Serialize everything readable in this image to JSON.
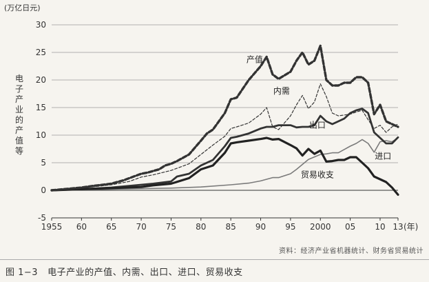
{
  "chart_data": {
    "type": "line",
    "unit_label": "(万亿日元)",
    "ylabel": "电子产业的产值等",
    "xlabel": "(年)",
    "ylim": [
      -5,
      30
    ],
    "xlim": [
      1955,
      2013
    ],
    "yticks": [
      -5,
      0,
      5,
      10,
      15,
      20,
      25,
      30
    ],
    "xticks": [
      {
        "value": 1955,
        "label": "1955"
      },
      {
        "value": 1960,
        "label": "60"
      },
      {
        "value": 1965,
        "label": "65"
      },
      {
        "value": 1970,
        "label": "70"
      },
      {
        "value": 1975,
        "label": "75"
      },
      {
        "value": 1980,
        "label": "80"
      },
      {
        "value": 1985,
        "label": "85"
      },
      {
        "value": 1990,
        "label": "90"
      },
      {
        "value": 1995,
        "label": "95"
      },
      {
        "value": 2000,
        "label": "2000"
      },
      {
        "value": 2005,
        "label": "05"
      },
      {
        "value": 2010,
        "label": "10"
      },
      {
        "value": 2013,
        "label": "13"
      }
    ],
    "grid": true,
    "series": [
      {
        "name": "产值",
        "style": "thick-dashed",
        "color": "#333333",
        "x": [
          1955,
          1957,
          1960,
          1962,
          1965,
          1967,
          1970,
          1971,
          1973,
          1974,
          1975,
          1976,
          1978,
          1980,
          1981,
          1982,
          1984,
          1985,
          1986,
          1988,
          1990,
          1991,
          1992,
          1993,
          1995,
          1996,
          1997,
          1998,
          1999,
          2000,
          2001,
          2002,
          2003,
          2004,
          2005,
          2006,
          2007,
          2008,
          2009,
          2010,
          2011,
          2012,
          2013
        ],
        "y": [
          0,
          0.2,
          0.5,
          0.8,
          1.2,
          1.8,
          3,
          3.2,
          3.8,
          4.5,
          4.8,
          5.3,
          6.5,
          9,
          10.3,
          11,
          14,
          16.5,
          16.8,
          20,
          22.5,
          24.2,
          21,
          20.2,
          21.5,
          23.5,
          25,
          22.8,
          23.5,
          26.2,
          20,
          19,
          19,
          19.5,
          19.5,
          20.5,
          20.5,
          19.5,
          13.8,
          15.5,
          12.5,
          12,
          11.5
        ]
      },
      {
        "name": "内需",
        "style": "thin-dashed",
        "color": "#333333",
        "x": [
          1955,
          1960,
          1965,
          1968,
          1970,
          1972,
          1975,
          1978,
          1980,
          1982,
          1984,
          1985,
          1986,
          1988,
          1990,
          1991,
          1992,
          1993,
          1995,
          1996,
          1997,
          1998,
          1999,
          2000,
          2001,
          2002,
          2003,
          2005,
          2006,
          2007,
          2008,
          2009,
          2010,
          2011,
          2012,
          2013
        ],
        "y": [
          0,
          0.4,
          1,
          1.6,
          2.4,
          2.8,
          3.6,
          4.8,
          6.5,
          8.2,
          9.8,
          11.2,
          11.5,
          12.2,
          13.8,
          15,
          11.5,
          11,
          13.5,
          15.5,
          17.2,
          14.8,
          16,
          19.3,
          17,
          14,
          13.5,
          13.8,
          14.2,
          14.5,
          12.8,
          11.2,
          11.8,
          10.5,
          11.5,
          12
        ]
      },
      {
        "name": "出口",
        "style": "thick-solid",
        "color": "#333333",
        "x": [
          1955,
          1960,
          1965,
          1970,
          1972,
          1975,
          1976,
          1978,
          1980,
          1982,
          1984,
          1985,
          1986,
          1987,
          1988,
          1990,
          1991,
          1992,
          1993,
          1995,
          1996,
          1997,
          1998,
          1999,
          2000,
          2001,
          2002,
          2003,
          2004,
          2005,
          2006,
          2007,
          2008,
          2009,
          2010,
          2011,
          2012,
          2013
        ],
        "y": [
          0,
          0.2,
          0.5,
          1,
          1.2,
          1.6,
          2.5,
          3,
          4.5,
          5.5,
          8,
          9.5,
          9.7,
          10,
          10.3,
          11.2,
          11.5,
          11.5,
          11.8,
          11.8,
          11.4,
          11.5,
          11.5,
          11.8,
          13.5,
          12.5,
          12,
          12.5,
          13,
          14,
          14.5,
          14.8,
          14,
          10.5,
          9.5,
          8.5,
          8.5,
          9.6
        ]
      },
      {
        "name": "进口",
        "style": "thin-solid",
        "color": "#7a7a7a",
        "x": [
          1955,
          1960,
          1965,
          1970,
          1975,
          1980,
          1985,
          1988,
          1990,
          1992,
          1993,
          1995,
          1996,
          1998,
          2000,
          2001,
          2002,
          2003,
          2004,
          2005,
          2006,
          2007,
          2008,
          2009,
          2010,
          2011,
          2012,
          2013
        ],
        "y": [
          0,
          0.1,
          0.2,
          0.3,
          0.4,
          0.6,
          1,
          1.3,
          1.7,
          2.3,
          2.3,
          3,
          3.8,
          5.6,
          6.5,
          6.6,
          6.8,
          6.8,
          7.4,
          8,
          8.5,
          9.2,
          8.5,
          6.9,
          8.8,
          9,
          8.8,
          9.5
        ]
      },
      {
        "name": "贸易收支",
        "style": "thick-solid-dark",
        "color": "#222222",
        "x": [
          1955,
          1960,
          1965,
          1970,
          1972,
          1975,
          1978,
          1980,
          1982,
          1984,
          1985,
          1986,
          1988,
          1990,
          1991,
          1992,
          1993,
          1995,
          1996,
          1997,
          1998,
          1999,
          2000,
          2001,
          2002,
          2003,
          2004,
          2005,
          2006,
          2007,
          2008,
          2009,
          2010,
          2011,
          2012,
          2013
        ],
        "y": [
          0,
          0.2,
          0.4,
          0.6,
          0.9,
          1.2,
          2.2,
          3.8,
          4.5,
          6.8,
          8.5,
          8.7,
          9,
          9.3,
          9.5,
          9.2,
          9.3,
          8.2,
          7.6,
          6.3,
          7.5,
          6.6,
          7.2,
          5.2,
          5.3,
          5.5,
          5.5,
          6,
          6,
          5,
          4,
          2.5,
          2,
          1.5,
          0.5,
          -0.8
        ]
      }
    ],
    "series_labels": [
      {
        "series": 0,
        "x": 1989,
        "y": 23.2
      },
      {
        "series": 1,
        "x": 1993.5,
        "y": 17.5
      },
      {
        "series": 2,
        "x": 1999.5,
        "y": 11.3
      },
      {
        "series": 3,
        "x": 2010.5,
        "y": 5.7
      },
      {
        "series": 4,
        "x": 1999.5,
        "y": 2.3
      }
    ]
  },
  "source_note": "资料：经济产业省机器统计、财务省贸易统计",
  "caption": {
    "figure_number": "图 1−3",
    "text": "电子产业的产值、内需、出口、进口、贸易收支"
  }
}
